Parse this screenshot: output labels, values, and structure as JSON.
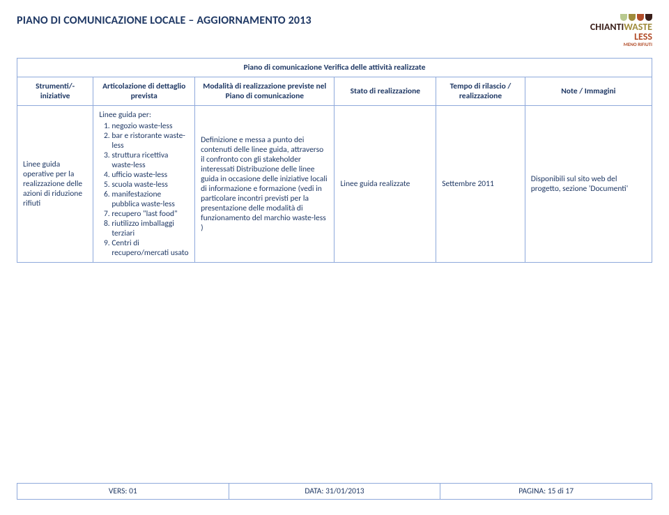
{
  "header": {
    "title": "PIANO DI COMUNICAZIONE LOCALE – AGGIORNAMENTO 2013"
  },
  "logo": {
    "word1": "CHIANTI",
    "word2": "WASTE",
    "word3": "LESS",
    "subline": "MENO RIFIUTI",
    "cup_colors": [
      "#b8c98f",
      "#9f8b3b",
      "#b24d2a",
      "#3a1f1a"
    ],
    "color_chianti": "#3a1f1a",
    "color_waste": "#9f8b3b",
    "color_less": "#b24d2a",
    "color_sub": "#b24d2a"
  },
  "table": {
    "caption": "Piano di comunicazione Verifica delle attività realizzate",
    "headers": {
      "strumenti": "Strumenti/- iniziative",
      "articolazione": "Articolazione di dettaglio prevista",
      "modalita": "Modalità di realizzazione previste nel Piano di comunicazione",
      "stato": "Stato di realizzazione",
      "tempo": "Tempo di rilascio / realizzazione",
      "note": "Note / Immagini"
    },
    "row": {
      "strumenti": "Linee guida operative per la realizzazione delle azioni di riduzione rifiuti",
      "artic_intro": "Linee guida per:",
      "artic_items": [
        "negozio waste-less",
        "bar e ristorante waste-less",
        "struttura ricettiva waste-less",
        "ufficio waste-less",
        "scuola waste-less",
        "manifestazione pubblica waste-less",
        "recupero \"last food\"",
        "riutilizzo imballaggi terziari",
        "Centri di recupero/mercati usato"
      ],
      "modalita": "Definizione e messa a punto dei contenuti delle linee guida, attraverso il confronto con gli stakeholder interessati Distribuzione delle linee guida in occasione delle iniziative locali di informazione e formazione (vedi in particolare incontri previsti per la presentazione delle modalità di funzionamento del marchio waste-less )",
      "stato": "Linee guida realizzate",
      "tempo": "Settembre 2011",
      "note": "Disponibili sul sito web del progetto, sezione 'Documenti'"
    }
  },
  "footer": {
    "vers": "VERS: 01",
    "data": "DATA: 31/01/2013",
    "pagina": "PAGINA: 15 di 17"
  },
  "style": {
    "border_color": "#8ea9db",
    "text_color": "#1f3864",
    "background": "#ffffff",
    "header_fontsize": 16,
    "cell_fontsize": 11.5
  }
}
